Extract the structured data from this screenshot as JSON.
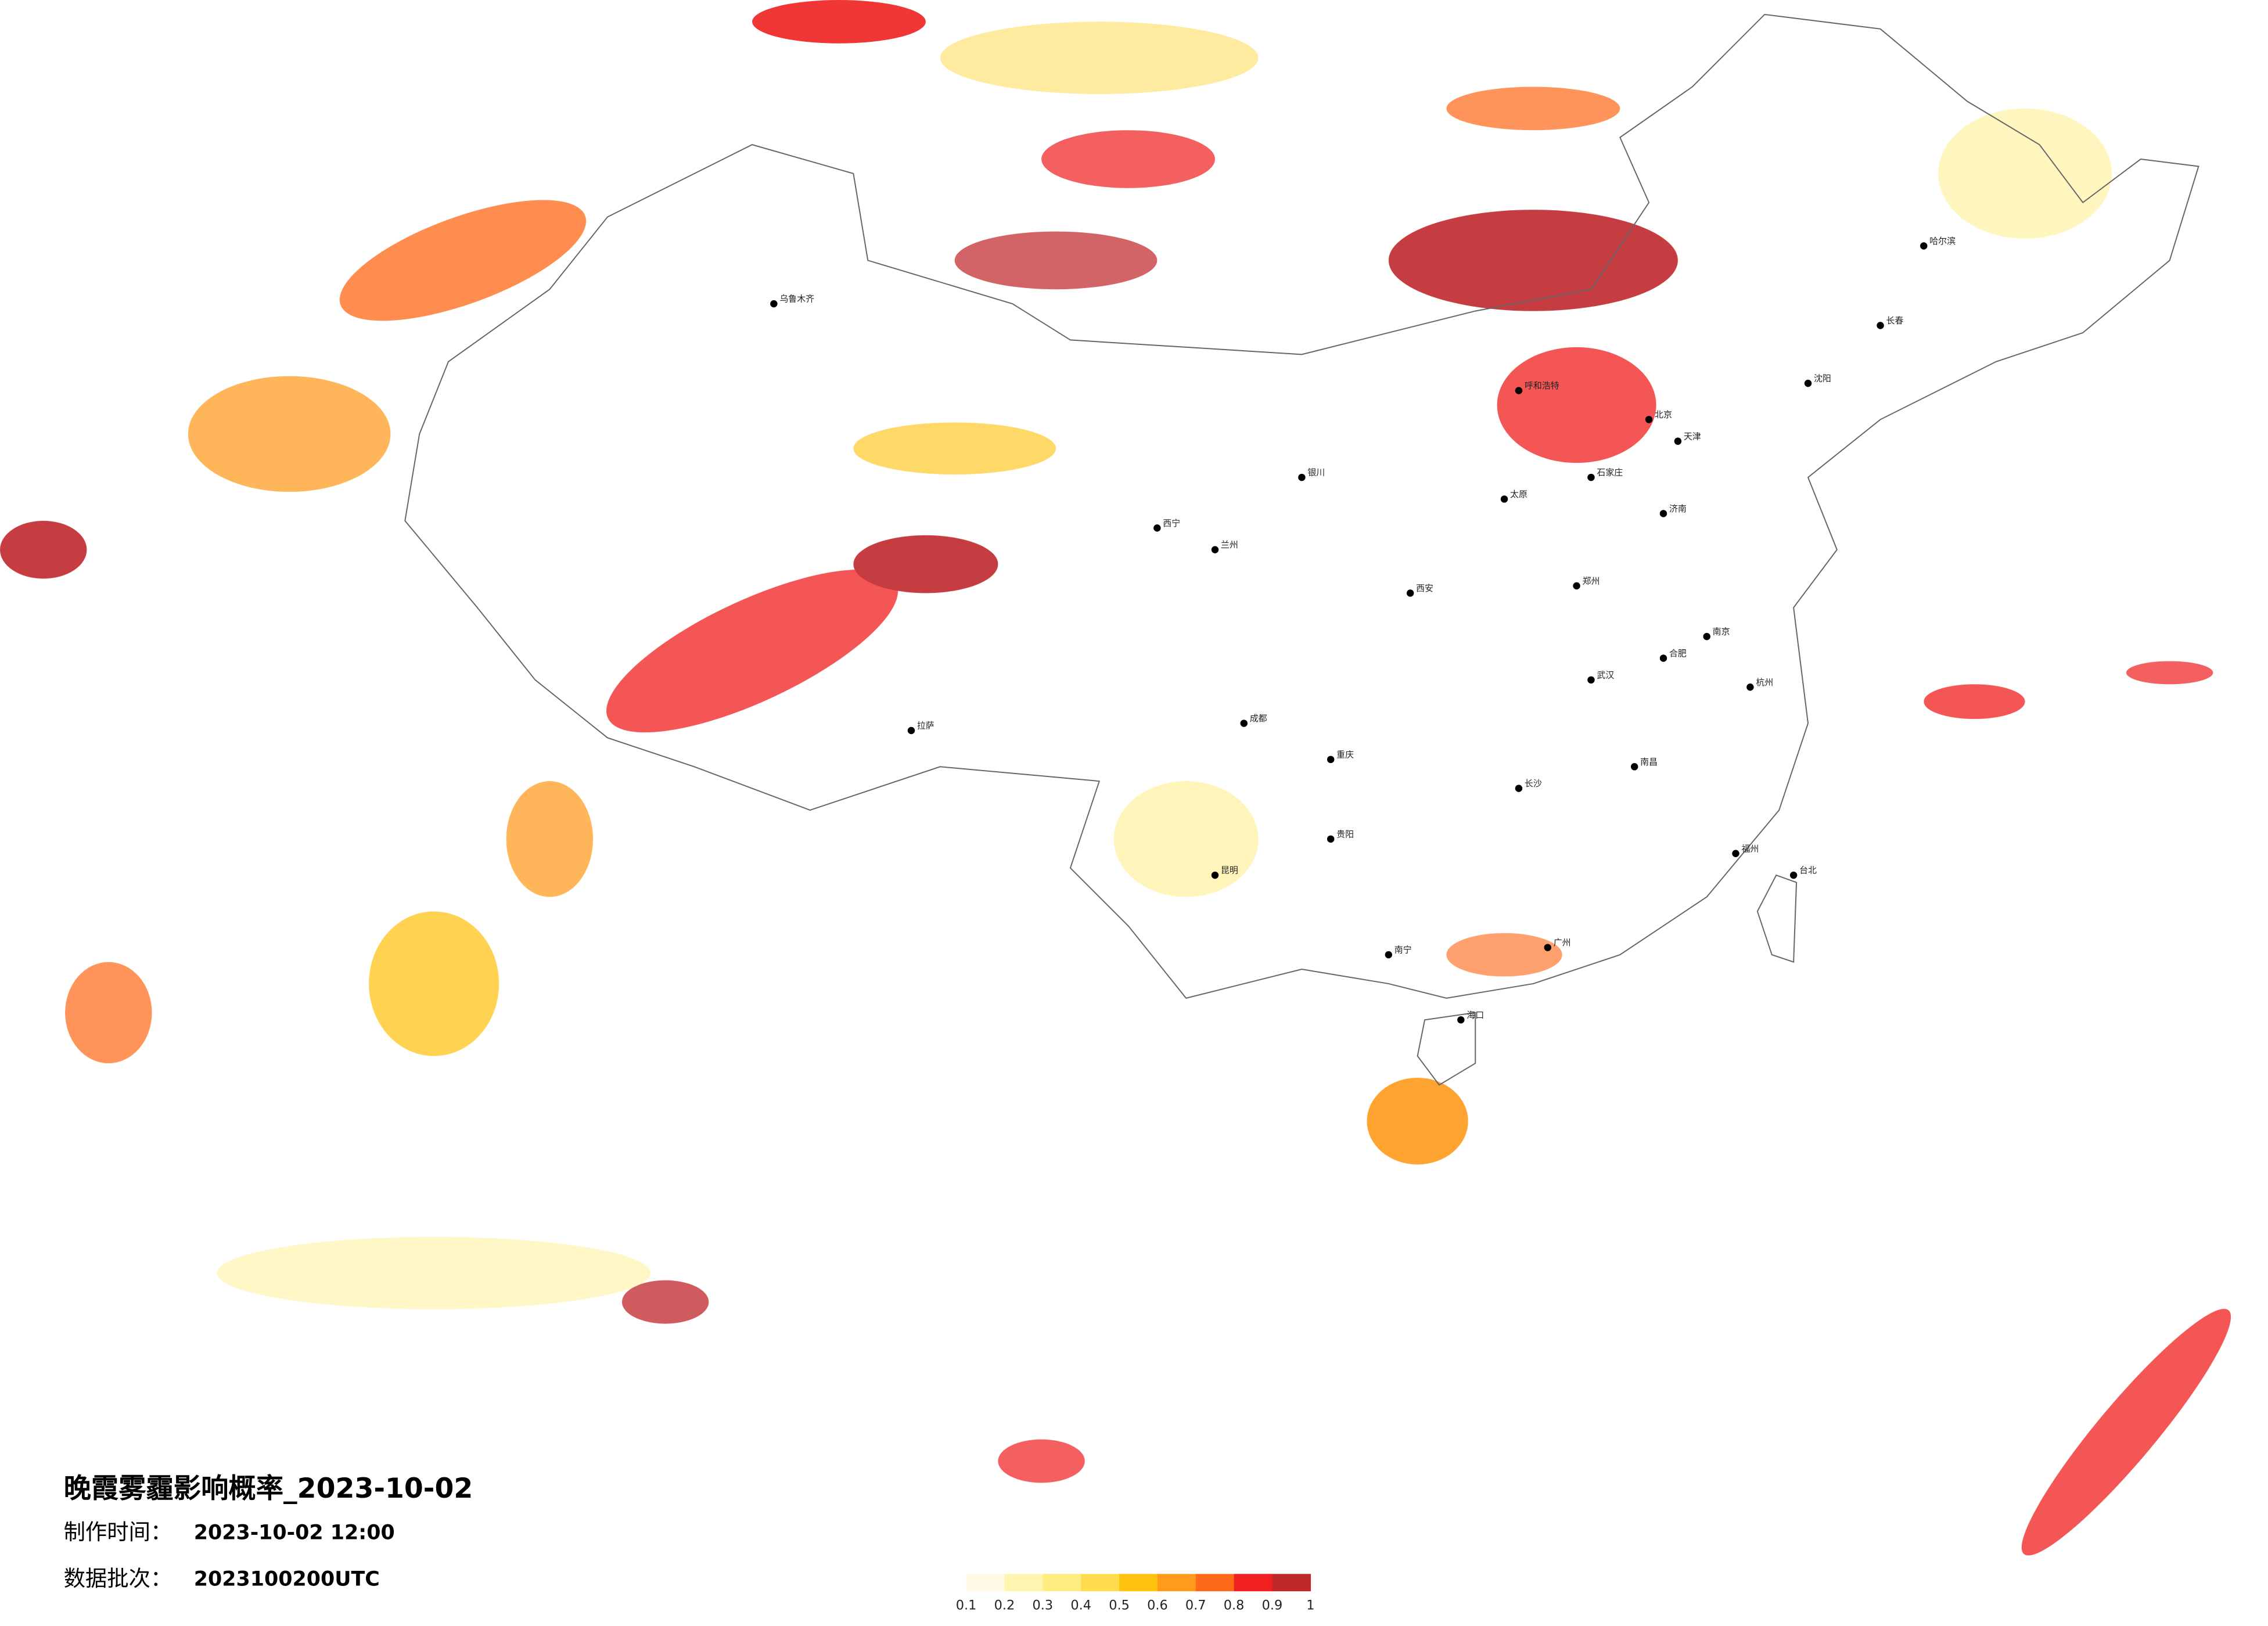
{
  "header": {
    "title": "晚霞雾霾影响概率_2023-10-02",
    "made_label": "制作时间：",
    "made_value": "2023-10-02 12:00",
    "batch_label": "数据批次：",
    "batch_value": "2023100200UTC"
  },
  "legend": {
    "colors": [
      "#fffbe6",
      "#fff4b0",
      "#ffec80",
      "#ffdb4d",
      "#ffc20e",
      "#ff9a1a",
      "#ff6a1a",
      "#f02020",
      "#c0282c"
    ],
    "ticks": [
      0.1,
      0.2,
      0.3,
      0.4,
      0.5,
      0.6,
      0.7,
      0.8,
      0.9,
      1
    ]
  },
  "cities": [
    "北京",
    "天津",
    "石家庄",
    "太原",
    "呼和浩特",
    "沈阳",
    "长春",
    "哈尔滨",
    "济南",
    "郑州",
    "西安",
    "兰州",
    "西宁",
    "银川",
    "乌鲁木齐",
    "拉萨",
    "成都",
    "重庆",
    "贵阳",
    "昆明",
    "南宁",
    "广州",
    "长沙",
    "武汉",
    "南昌",
    "福州",
    "杭州",
    "南京",
    "合肥",
    "海口",
    "台北"
  ]
}
